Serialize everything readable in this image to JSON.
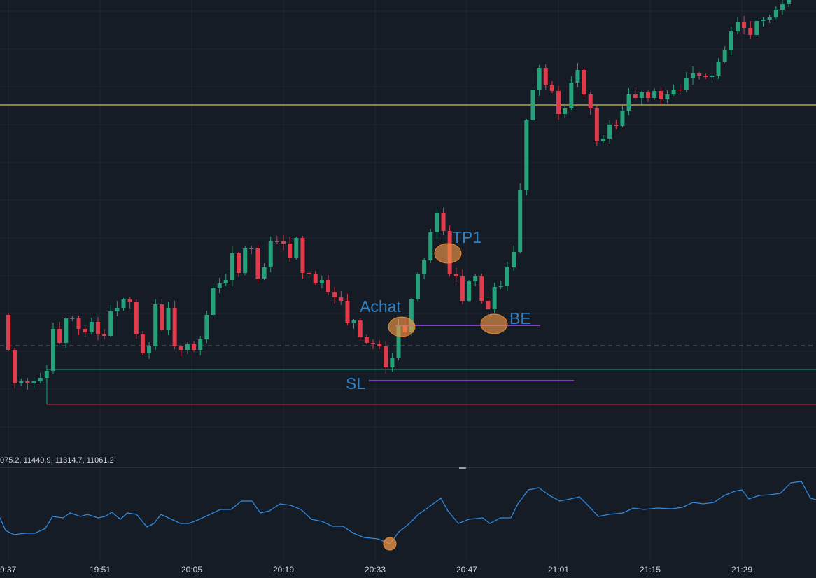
{
  "annotations": {
    "entry": "Achat",
    "take_profit": "TP1",
    "breakeven": "BE",
    "stop_loss": "SL"
  },
  "indicator_legend": "075.2, 11440.9, 11314.7, 11061.2",
  "time_axis": [
    "9:37",
    "19:51",
    "20:05",
    "20:19",
    "20:33",
    "20:47",
    "21:01",
    "21:15",
    "21:29"
  ]
}
